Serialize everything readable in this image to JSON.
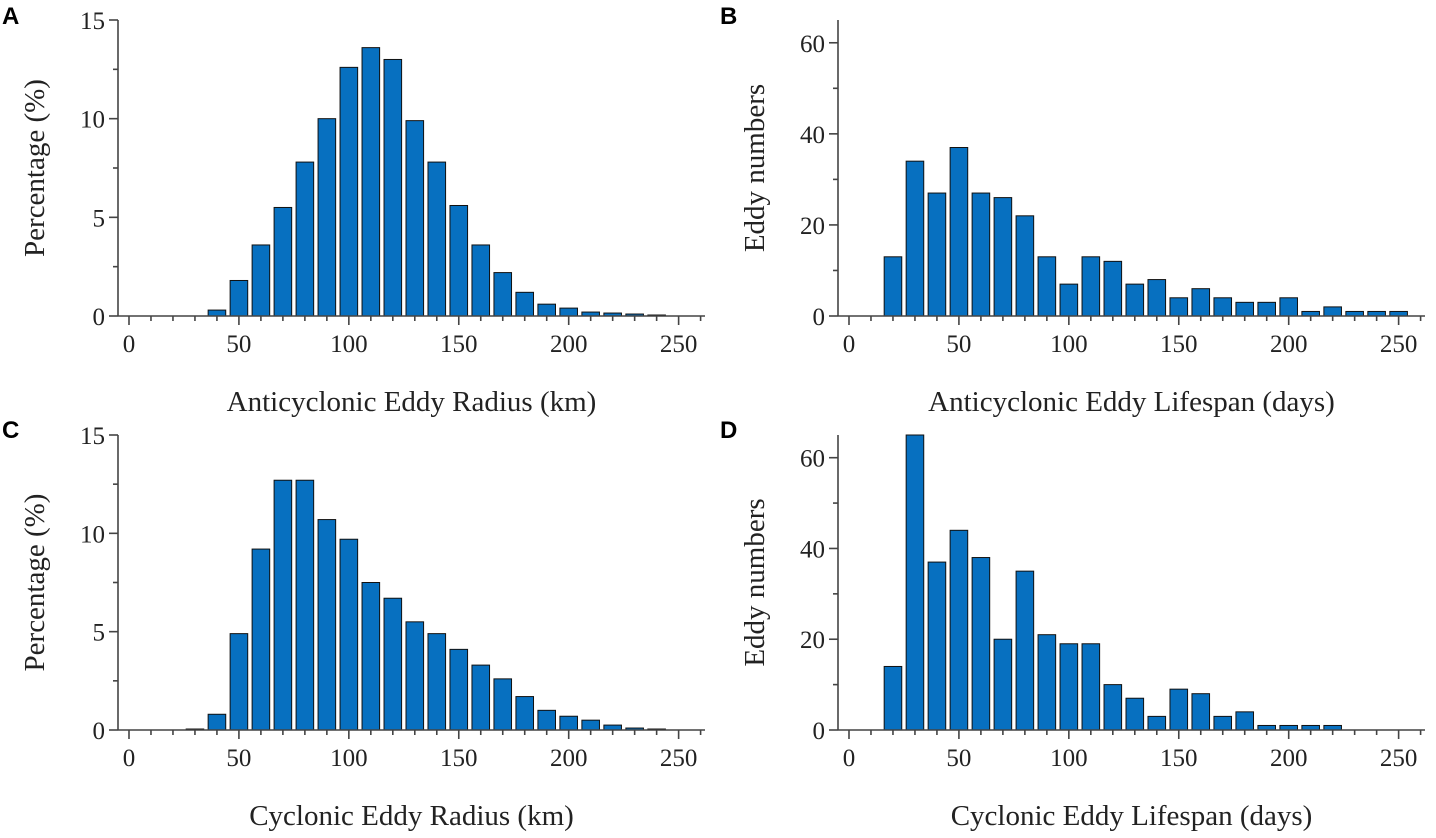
{
  "colors": {
    "bar_fill": "#0770c0",
    "bar_edge": "#111111",
    "axis": "#444444",
    "text": "#222222"
  },
  "chart_data": [
    {
      "panel": "A",
      "type": "bar",
      "xlabel": "Anticyclonic Eddy Radius (km)",
      "ylabel": "Percentage (%)",
      "xlim": [
        -5,
        262
      ],
      "ylim": [
        0,
        15
      ],
      "xticks": [
        0,
        50,
        100,
        150,
        200,
        250
      ],
      "yticks": [
        0,
        5,
        10,
        15
      ],
      "bin_width": 10,
      "bar_rel_width": 0.8,
      "x": [
        10,
        20,
        30,
        40,
        50,
        60,
        70,
        80,
        90,
        100,
        110,
        120,
        130,
        140,
        150,
        160,
        170,
        180,
        190,
        200,
        210,
        220,
        230,
        240
      ],
      "values": [
        0,
        0,
        0,
        0.3,
        1.8,
        3.6,
        5.5,
        7.8,
        10.0,
        12.6,
        13.6,
        13.0,
        9.9,
        7.8,
        5.6,
        3.6,
        2.2,
        1.2,
        0.6,
        0.4,
        0.2,
        0.15,
        0.1,
        0.05
      ]
    },
    {
      "panel": "B",
      "type": "bar",
      "xlabel": "Anticyclonic Eddy Lifespan (days)",
      "ylabel": "Eddy numbers",
      "xlim": [
        -5,
        262
      ],
      "ylim": [
        0,
        65
      ],
      "xticks": [
        0,
        50,
        100,
        150,
        200,
        250
      ],
      "yticks": [
        0,
        20,
        40,
        60
      ],
      "bin_width": 10,
      "bar_rel_width": 0.8,
      "x": [
        20,
        30,
        40,
        50,
        60,
        70,
        80,
        90,
        100,
        110,
        120,
        130,
        140,
        150,
        160,
        170,
        180,
        190,
        200,
        210,
        220,
        230,
        240,
        250
      ],
      "values": [
        13,
        34,
        27,
        37,
        27,
        26,
        22,
        13,
        7,
        13,
        12,
        7,
        8,
        4,
        6,
        4,
        3,
        3,
        4,
        1,
        2,
        1,
        1,
        1
      ]
    },
    {
      "panel": "C",
      "type": "bar",
      "xlabel": "Cyclonic Eddy Radius (km)",
      "ylabel": "Percentage (%)",
      "xlim": [
        -5,
        262
      ],
      "ylim": [
        0,
        15
      ],
      "xticks": [
        0,
        50,
        100,
        150,
        200,
        250
      ],
      "yticks": [
        0,
        5,
        10,
        15
      ],
      "bin_width": 10,
      "bar_rel_width": 0.8,
      "x": [
        10,
        20,
        30,
        40,
        50,
        60,
        70,
        80,
        90,
        100,
        110,
        120,
        130,
        140,
        150,
        160,
        170,
        180,
        190,
        200,
        210,
        220,
        230,
        240
      ],
      "values": [
        0,
        0,
        0.05,
        0.8,
        4.9,
        9.2,
        12.7,
        12.7,
        10.7,
        9.7,
        7.5,
        6.7,
        5.5,
        4.9,
        4.1,
        3.3,
        2.6,
        1.7,
        1.0,
        0.7,
        0.5,
        0.25,
        0.1,
        0.05
      ]
    },
    {
      "panel": "D",
      "type": "bar",
      "xlabel": "Cyclonic Eddy Lifespan (days)",
      "ylabel": "Eddy numbers",
      "xlim": [
        -5,
        262
      ],
      "ylim": [
        0,
        65
      ],
      "xticks": [
        0,
        50,
        100,
        150,
        200,
        250
      ],
      "yticks": [
        0,
        20,
        40,
        60
      ],
      "bin_width": 10,
      "bar_rel_width": 0.8,
      "x": [
        20,
        30,
        40,
        50,
        60,
        70,
        80,
        90,
        100,
        110,
        120,
        130,
        140,
        150,
        160,
        170,
        180,
        190,
        200,
        210,
        220
      ],
      "values": [
        14,
        65,
        37,
        44,
        38,
        20,
        35,
        21,
        19,
        19,
        10,
        7,
        3,
        9,
        8,
        3,
        4,
        1,
        1,
        1,
        1
      ]
    }
  ]
}
